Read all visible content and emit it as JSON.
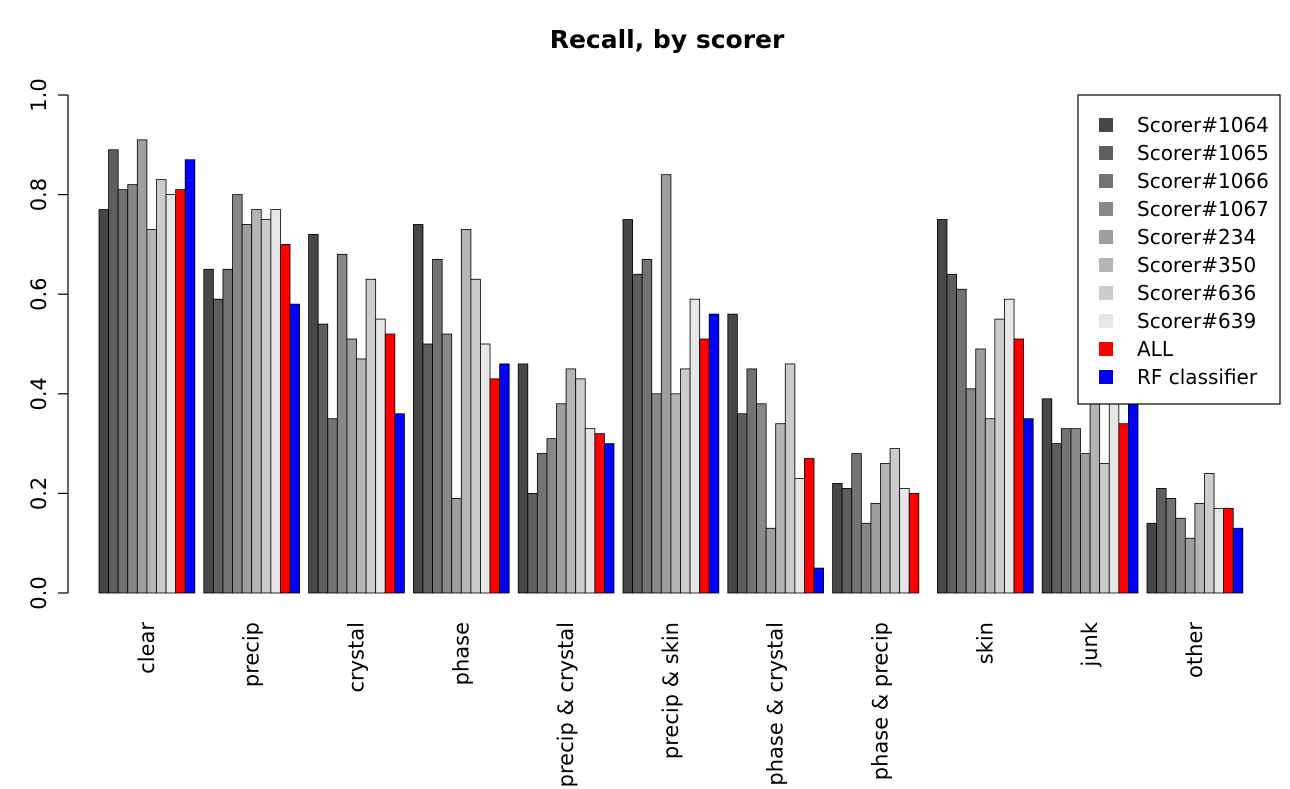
{
  "chart_data": {
    "type": "bar",
    "title": "Recall, by scorer",
    "xlabel": "",
    "ylabel": "",
    "ylim": [
      0,
      1
    ],
    "yticks": [
      "0.0",
      "0.2",
      "0.4",
      "0.6",
      "0.8",
      "1.0"
    ],
    "grid": false,
    "legend_position": "top-right",
    "categories": [
      "clear",
      "precip",
      "crystal",
      "phase",
      "precip & crystal",
      "precip & skin",
      "phase & crystal",
      "phase & precip",
      "skin",
      "junk",
      "other"
    ],
    "series": [
      {
        "name": "Scorer#1064",
        "color": "#474747",
        "values": [
          0.77,
          0.65,
          0.72,
          0.74,
          0.46,
          0.75,
          0.56,
          0.22,
          0.75,
          0.39,
          0.14
        ]
      },
      {
        "name": "Scorer#1065",
        "color": "#5e5e5e",
        "values": [
          0.89,
          0.59,
          0.54,
          0.5,
          0.2,
          0.64,
          0.36,
          0.21,
          0.64,
          0.3,
          0.21
        ]
      },
      {
        "name": "Scorer#1066",
        "color": "#737373",
        "values": [
          0.81,
          0.65,
          0.35,
          0.67,
          0.28,
          0.67,
          0.45,
          0.28,
          0.61,
          0.33,
          0.19
        ]
      },
      {
        "name": "Scorer#1067",
        "color": "#888888",
        "values": [
          0.82,
          0.8,
          0.68,
          0.52,
          0.31,
          0.4,
          0.38,
          0.14,
          0.41,
          0.33,
          0.15
        ]
      },
      {
        "name": "Scorer#234",
        "color": "#9e9e9e",
        "values": [
          0.91,
          0.74,
          0.51,
          0.19,
          0.38,
          0.84,
          0.13,
          0.18,
          0.49,
          0.28,
          0.11
        ]
      },
      {
        "name": "Scorer#350",
        "color": "#b5b5b5",
        "values": [
          0.73,
          0.77,
          0.47,
          0.73,
          0.45,
          0.4,
          0.34,
          0.26,
          0.35,
          0.38,
          0.18
        ]
      },
      {
        "name": "Scorer#636",
        "color": "#cccccc",
        "values": [
          0.83,
          0.75,
          0.63,
          0.63,
          0.43,
          0.45,
          0.46,
          0.29,
          0.55,
          0.26,
          0.24
        ]
      },
      {
        "name": "Scorer#639",
        "color": "#e6e6e6",
        "values": [
          0.8,
          0.77,
          0.55,
          0.5,
          0.33,
          0.59,
          0.23,
          0.21,
          0.59,
          0.38,
          0.17
        ]
      },
      {
        "name": "ALL",
        "color": "#ff0000",
        "values": [
          0.81,
          0.7,
          0.52,
          0.43,
          0.32,
          0.51,
          0.27,
          0.2,
          0.51,
          0.34,
          0.17
        ]
      },
      {
        "name": "RF classifier",
        "color": "#0000ff",
        "values": [
          0.87,
          0.58,
          0.36,
          0.46,
          0.3,
          0.56,
          0.05,
          0.0,
          0.35,
          0.38,
          0.13
        ]
      }
    ]
  }
}
